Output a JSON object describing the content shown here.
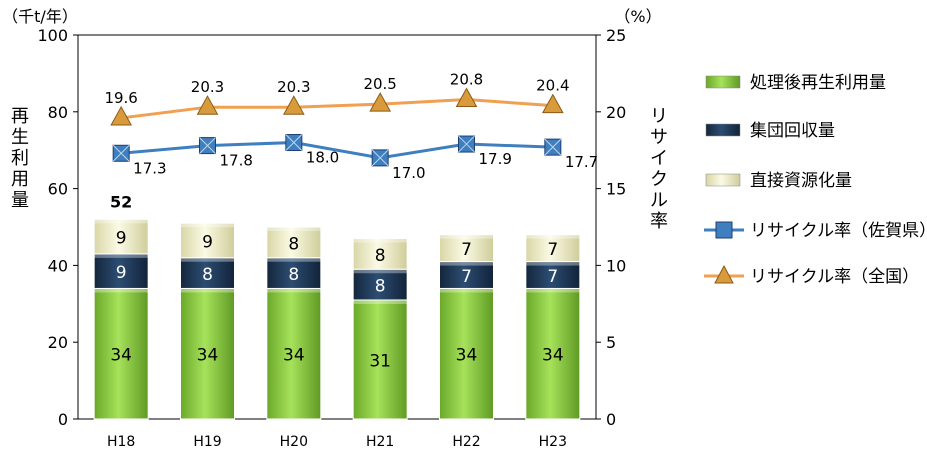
{
  "chart_data": {
    "type": "bar",
    "categories": [
      "H18",
      "H19",
      "H20",
      "H21",
      "H22",
      "H23"
    ],
    "stack_totals": [
      52,
      null,
      null,
      null,
      null,
      null
    ],
    "series": [
      {
        "name": "処理後再生利用量",
        "kind": "stacked-bar",
        "axis": "left",
        "color": "#8cd43c",
        "values": [
          34,
          34,
          34,
          31,
          34,
          34
        ]
      },
      {
        "name": "集団回収量",
        "kind": "stacked-bar",
        "axis": "left",
        "color": "#1f3a5a",
        "values": [
          9,
          8,
          8,
          8,
          7,
          7
        ]
      },
      {
        "name": "直接資源化量",
        "kind": "stacked-bar",
        "axis": "left",
        "color": "#f4f2cc",
        "values": [
          9,
          9,
          8,
          8,
          7,
          7
        ]
      },
      {
        "name": "リサイクル率（佐賀県）",
        "kind": "line",
        "axis": "right",
        "marker": "square",
        "color": "#3f7fc0",
        "values": [
          17.3,
          17.8,
          18.0,
          17.0,
          17.9,
          17.7
        ]
      },
      {
        "name": "リサイクル率（全国）",
        "kind": "line",
        "axis": "right",
        "marker": "triangle",
        "color": "#f0a050",
        "values": [
          19.6,
          20.3,
          20.3,
          20.5,
          20.8,
          20.4
        ]
      }
    ],
    "y_left": {
      "unit": "（千t/年）",
      "label": "再生利用量",
      "lim": [
        0,
        100
      ],
      "ticks": [
        0,
        20,
        40,
        60,
        80,
        100
      ]
    },
    "y_right": {
      "unit": "（%）",
      "label": "リサイクル率",
      "lim": [
        0,
        25
      ],
      "ticks": [
        0,
        5,
        10,
        15,
        20,
        25
      ]
    },
    "grid": false,
    "legend_position": "right"
  }
}
